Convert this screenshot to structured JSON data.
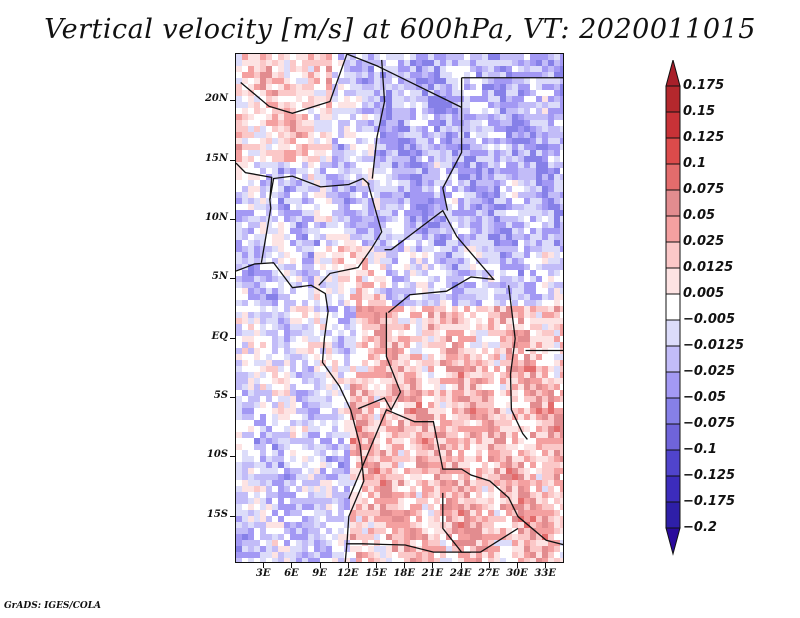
{
  "title": "Vertical velocity [m/s] at 600hPa, VT: 2020011015",
  "footer": "GrADS: IGES/COLA",
  "map": {
    "variable": "Vertical velocity",
    "units": "m/s",
    "level": "600hPa",
    "valid_time": "2020011015",
    "lat_range": [
      -19,
      24
    ],
    "lon_range": [
      0,
      35
    ],
    "y_axis_labels": [
      "20N",
      "15N",
      "10N",
      "5N",
      "EQ",
      "5S",
      "10S",
      "15S"
    ],
    "y_axis_values": [
      20,
      15,
      10,
      5,
      0,
      -5,
      -10,
      -15
    ],
    "x_axis_labels": [
      "3E",
      "6E",
      "9E",
      "12E",
      "15E",
      "18E",
      "21E",
      "24E",
      "27E",
      "30E",
      "33E"
    ],
    "x_axis_values": [
      3,
      6,
      9,
      12,
      15,
      18,
      21,
      24,
      27,
      30,
      33
    ]
  },
  "colorbar": {
    "labels": [
      "0.175",
      "0.15",
      "0.125",
      "0.1",
      "0.075",
      "0.05",
      "0.025",
      "0.0125",
      "0.005",
      "−0.005",
      "−0.0125",
      "−0.025",
      "−0.05",
      "−0.075",
      "−0.1",
      "−0.125",
      "−0.175",
      "−0.2"
    ],
    "colors": [
      "#b4282d",
      "#c83237",
      "#dc4b4b",
      "#e36c6c",
      "#e28c8f",
      "#f4a0a0",
      "#fbc8c8",
      "#fde3e3",
      "#ffffff",
      "#dcdcfa",
      "#c2bcf8",
      "#a399f4",
      "#8680e8",
      "#6f64da",
      "#5044cc",
      "#3c2cbc",
      "#2e1fa8",
      "#250f9a"
    ],
    "over_color": "#a8202a",
    "under_color": "#2a0a9c"
  }
}
